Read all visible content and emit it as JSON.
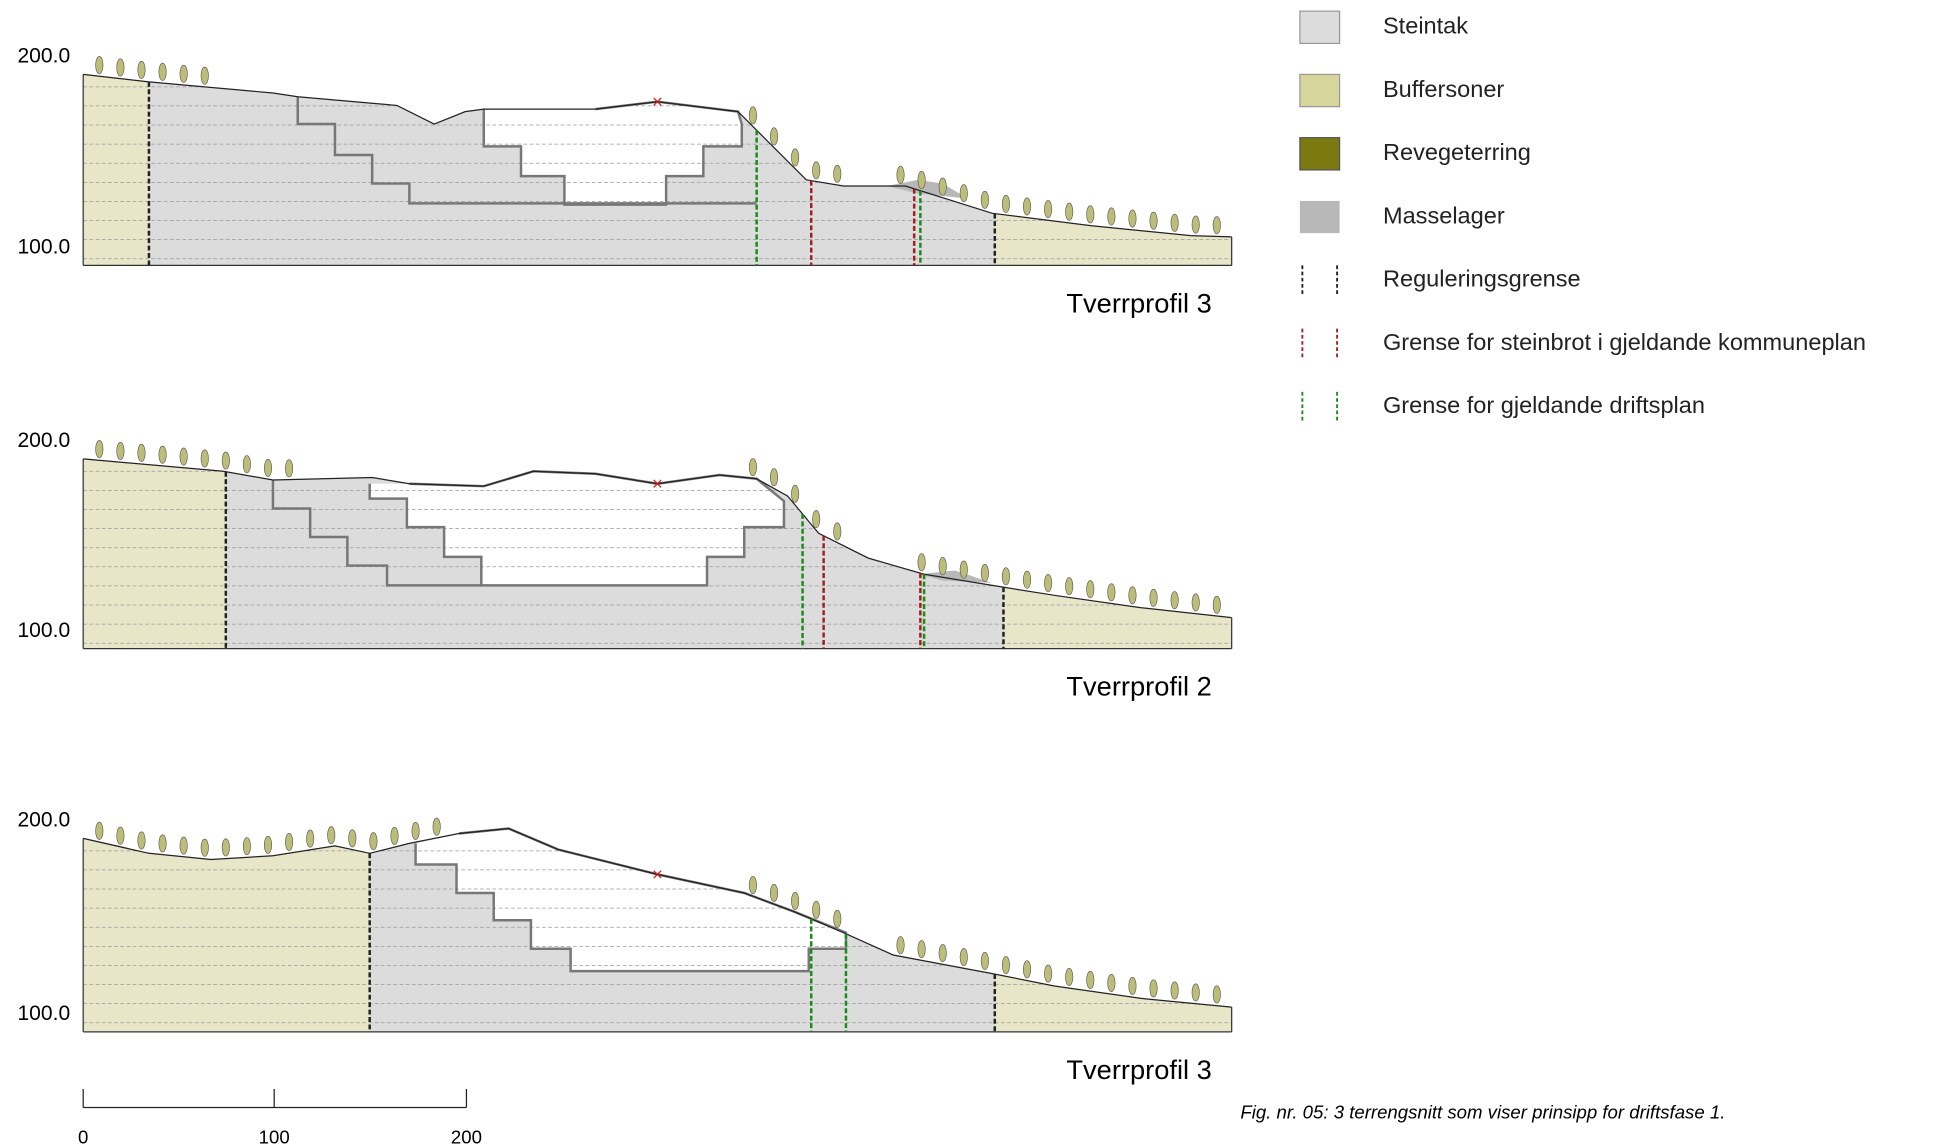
{
  "profiles": [
    {
      "label": "Tverrprofil 3",
      "top_label": "200.0",
      "bottom_label": "100.0"
    },
    {
      "label": "Tverrprofil 2",
      "top_label": "200.0",
      "bottom_label": "100.0"
    },
    {
      "label": "Tverrprofil 3",
      "top_label": "200.0",
      "bottom_label": "100.0"
    }
  ],
  "legend": [
    "Steintak",
    "Buffersoner",
    "Revegeterring",
    "Masselager",
    "Reguleringsgrense",
    "Grense for steinbrot i gjeldande kommuneplan",
    "Grense for gjeldande driftsplan"
  ],
  "scale": [
    "0",
    "100",
    "200"
  ],
  "caption": "Fig. nr. 05: 3 terrengsnitt som viser prinsipp for driftsfase 1."
}
